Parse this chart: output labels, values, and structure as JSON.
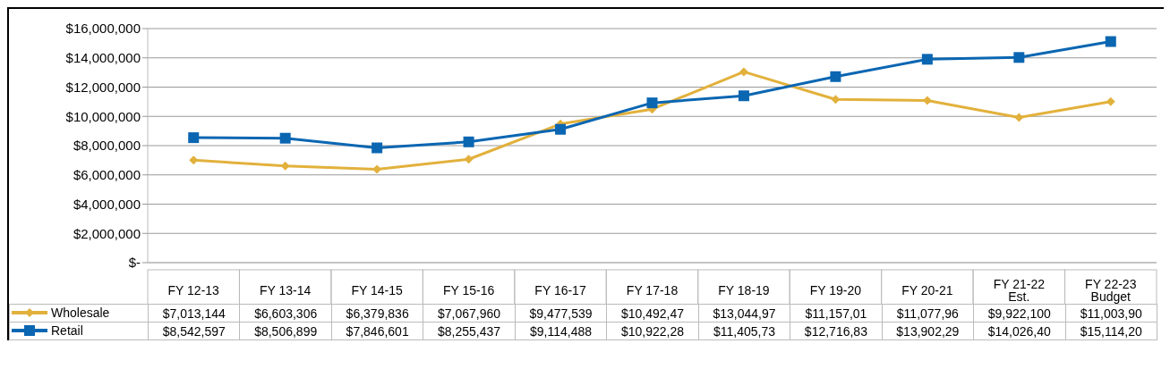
{
  "chart_data": {
    "type": "line",
    "categories": [
      "FY 12-13",
      "FY 13-14",
      "FY 14-15",
      "FY 15-16",
      "FY 16-17",
      "FY 17-18",
      "FY 18-19",
      "FY 19-20",
      "FY 20-21",
      "FY 21-22 Est.",
      "FY 22-23 Budget"
    ],
    "series": [
      {
        "name": "Wholesale",
        "color": "#e2b13c",
        "marker": "diamond",
        "values": [
          7013144,
          6603306,
          6379836,
          7067960,
          9477539,
          10492470,
          13044970,
          11157010,
          11077960,
          9922100,
          11003900
        ],
        "value_labels": [
          "$7,013,144",
          "$6,603,306",
          "$6,379,836",
          "$7,067,960",
          "$9,477,539",
          "$10,492,47",
          "$13,044,97",
          "$11,157,01",
          "$11,077,96",
          "$9,922,100",
          "$11,003,90"
        ]
      },
      {
        "name": "Retail",
        "color": "#0b66b2",
        "marker": "square",
        "values": [
          8542597,
          8506899,
          7846601,
          8255437,
          9114488,
          10922280,
          11405730,
          12716830,
          13902290,
          14026400,
          15114200
        ],
        "value_labels": [
          "$8,542,597",
          "$8,506,899",
          "$7,846,601",
          "$8,255,437",
          "$9,114,488",
          "$10,922,28",
          "$11,405,73",
          "$12,716,83",
          "$13,902,29",
          "$14,026,40",
          "$15,114,20"
        ]
      }
    ],
    "ylim": [
      0,
      16000000
    ],
    "yticks": [
      {
        "value": 0,
        "label": "$-"
      },
      {
        "value": 2000000,
        "label": "$2,000,000"
      },
      {
        "value": 4000000,
        "label": "$4,000,000"
      },
      {
        "value": 6000000,
        "label": "$6,000,000"
      },
      {
        "value": 8000000,
        "label": "$8,000,000"
      },
      {
        "value": 10000000,
        "label": "$10,000,000"
      },
      {
        "value": 12000000,
        "label": "$12,000,000"
      },
      {
        "value": 14000000,
        "label": "$14,000,000"
      },
      {
        "value": 16000000,
        "label": "$16,000,000"
      }
    ],
    "grid": "y",
    "legend": "bottom"
  }
}
